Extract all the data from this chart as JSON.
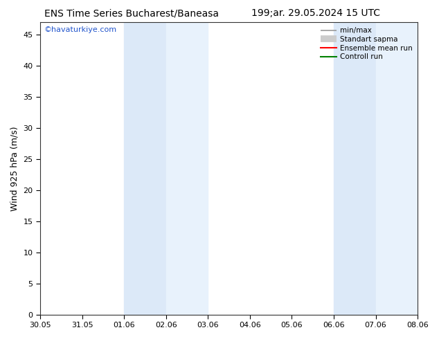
{
  "title_left": "ENS Time Series Bucharest/Baneasa",
  "title_right": "199;ar. 29.05.2024 15 UTC",
  "ylabel": "Wind 925 hPa (m/s)",
  "watermark": "©havaturkiye.com",
  "ylim": [
    0,
    47
  ],
  "yticks": [
    0,
    5,
    10,
    15,
    20,
    25,
    30,
    35,
    40,
    45
  ],
  "xtick_labels": [
    "30.05",
    "31.05",
    "01.06",
    "02.06",
    "03.06",
    "04.06",
    "05.06",
    "06.06",
    "07.06",
    "08.06"
  ],
  "shaded_bands": [
    {
      "xmin": 2.0,
      "xmax": 3.0,
      "color": "#dce9f8"
    },
    {
      "xmin": 3.0,
      "xmax": 4.0,
      "color": "#e8f2fc"
    },
    {
      "xmin": 7.0,
      "xmax": 8.0,
      "color": "#dce9f8"
    },
    {
      "xmin": 8.0,
      "xmax": 9.0,
      "color": "#e8f2fc"
    }
  ],
  "background_color": "#ffffff",
  "legend_entries": [
    {
      "label": "min/max",
      "color": "#999999",
      "linewidth": 1.2
    },
    {
      "label": "Standart sapma",
      "color": "#cccccc",
      "linewidth": 7
    },
    {
      "label": "Ensemble mean run",
      "color": "#ff0000",
      "linewidth": 1.5
    },
    {
      "label": "Controll run",
      "color": "#008000",
      "linewidth": 1.5
    }
  ],
  "title_fontsize": 10,
  "tick_fontsize": 8,
  "ylabel_fontsize": 9,
  "watermark_color": "#2255cc",
  "watermark_fontsize": 8
}
